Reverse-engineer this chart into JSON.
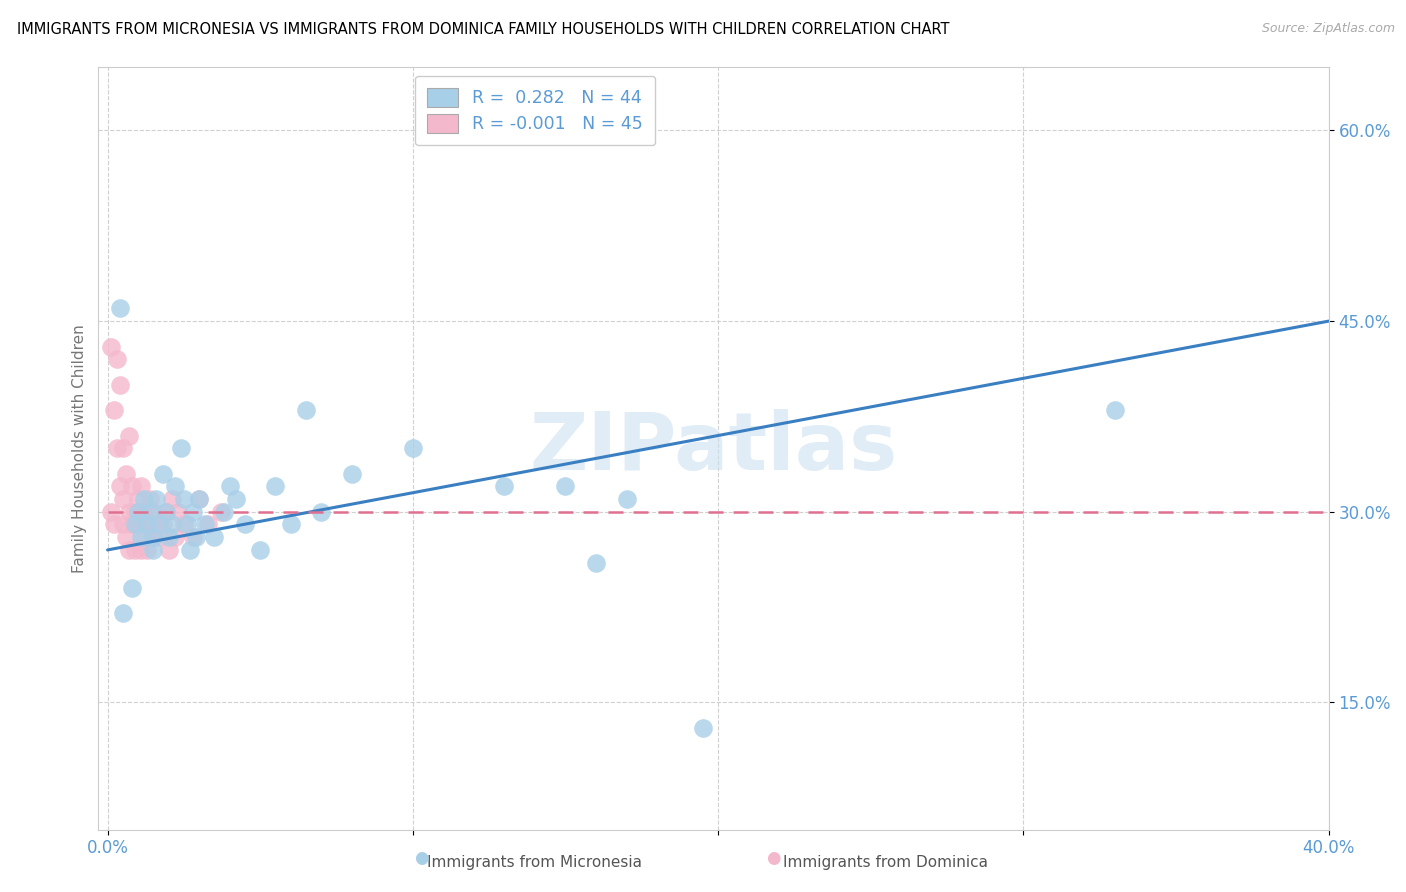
{
  "title": "IMMIGRANTS FROM MICRONESIA VS IMMIGRANTS FROM DOMINICA FAMILY HOUSEHOLDS WITH CHILDREN CORRELATION CHART",
  "source": "Source: ZipAtlas.com",
  "ylabel": "Family Households with Children",
  "xlim": [
    -0.003,
    0.4
  ],
  "ylim": [
    0.05,
    0.65
  ],
  "xtick_positions": [
    0.0,
    0.1,
    0.2,
    0.3,
    0.4
  ],
  "xticklabels": [
    "0.0%",
    "",
    "",
    "",
    "40.0%"
  ],
  "ytick_positions": [
    0.15,
    0.3,
    0.45,
    0.6
  ],
  "yticklabels": [
    "15.0%",
    "30.0%",
    "45.0%",
    "60.0%"
  ],
  "blue_color": "#a8cfe8",
  "pink_color": "#f4b8cc",
  "blue_line_color": "#3a7fc1",
  "pink_line_color": "#e07090",
  "R_blue": 0.282,
  "N_blue": 44,
  "R_pink": -0.001,
  "N_pink": 45,
  "legend_label_blue": "Immigrants from Micronesia",
  "legend_label_pink": "Immigrants from Dominica",
  "watermark": "ZIPatlas",
  "blue_scatter_x": [
    0.004,
    0.005,
    0.008,
    0.009,
    0.01,
    0.011,
    0.012,
    0.013,
    0.014,
    0.015,
    0.015,
    0.016,
    0.017,
    0.018,
    0.019,
    0.02,
    0.021,
    0.022,
    0.024,
    0.025,
    0.026,
    0.027,
    0.028,
    0.029,
    0.03,
    0.032,
    0.035,
    0.038,
    0.04,
    0.042,
    0.045,
    0.05,
    0.055,
    0.06,
    0.065,
    0.07,
    0.08,
    0.1,
    0.13,
    0.15,
    0.16,
    0.17,
    0.195,
    0.33
  ],
  "blue_scatter_y": [
    0.46,
    0.22,
    0.24,
    0.29,
    0.3,
    0.28,
    0.31,
    0.29,
    0.3,
    0.28,
    0.27,
    0.31,
    0.29,
    0.33,
    0.3,
    0.28,
    0.29,
    0.32,
    0.35,
    0.31,
    0.29,
    0.27,
    0.3,
    0.28,
    0.31,
    0.29,
    0.28,
    0.3,
    0.32,
    0.31,
    0.29,
    0.27,
    0.32,
    0.29,
    0.38,
    0.3,
    0.33,
    0.35,
    0.32,
    0.32,
    0.26,
    0.31,
    0.13,
    0.38
  ],
  "pink_scatter_x": [
    0.001,
    0.001,
    0.002,
    0.002,
    0.003,
    0.003,
    0.004,
    0.004,
    0.005,
    0.005,
    0.005,
    0.006,
    0.006,
    0.007,
    0.007,
    0.007,
    0.008,
    0.008,
    0.009,
    0.009,
    0.01,
    0.01,
    0.011,
    0.011,
    0.012,
    0.012,
    0.013,
    0.013,
    0.014,
    0.014,
    0.015,
    0.015,
    0.016,
    0.017,
    0.018,
    0.019,
    0.02,
    0.021,
    0.022,
    0.023,
    0.025,
    0.028,
    0.03,
    0.033,
    0.037
  ],
  "pink_scatter_y": [
    0.3,
    0.43,
    0.29,
    0.38,
    0.42,
    0.35,
    0.32,
    0.4,
    0.31,
    0.35,
    0.29,
    0.28,
    0.33,
    0.27,
    0.3,
    0.36,
    0.29,
    0.32,
    0.27,
    0.3,
    0.29,
    0.31,
    0.27,
    0.32,
    0.28,
    0.3,
    0.29,
    0.27,
    0.31,
    0.29,
    0.28,
    0.3,
    0.29,
    0.28,
    0.29,
    0.3,
    0.27,
    0.31,
    0.28,
    0.3,
    0.29,
    0.28,
    0.31,
    0.29,
    0.3
  ],
  "blue_line_x": [
    0.0,
    0.4
  ],
  "blue_line_y": [
    0.27,
    0.45
  ],
  "pink_line_x": [
    0.0,
    0.4
  ],
  "pink_line_y": [
    0.3,
    0.3
  ],
  "tick_label_color": "#5b9bd5",
  "grid_color": "#d0d0d0",
  "spine_color": "#cccccc",
  "watermark_color": "#cce0f0",
  "watermark_alpha": 0.6,
  "legend_box_color": "#5b9bd5",
  "bottom_label_color": "#555555"
}
